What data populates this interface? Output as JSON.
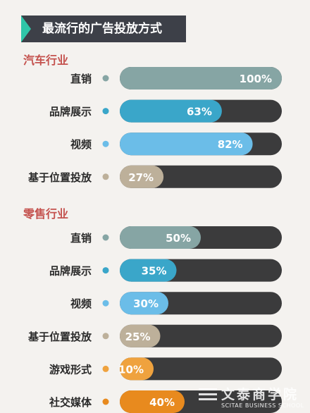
{
  "title": "最流行的广告投放方式",
  "watermark": {
    "cn": "文泰商学院",
    "en": "SCITAE BUSINESS SCHOOL"
  },
  "colors": {
    "track": "#3b3b3c",
    "gray_teal": "#86a5a4",
    "teal": "#3aa6c9",
    "light_blue": "#6bbde8",
    "tan": "#bdb09a",
    "orange_light": "#efa23e",
    "orange": "#e88a1e"
  },
  "chart_data": [
    {
      "type": "bar",
      "title": "汽车行业",
      "categories": [
        "直销",
        "品牌展示",
        "视频",
        "基于位置投放"
      ],
      "values": [
        100,
        63,
        82,
        27
      ],
      "value_labels": [
        "100%",
        "63%",
        "82%",
        "27%"
      ],
      "colors": [
        "#86a5a4",
        "#3aa6c9",
        "#6bbde8",
        "#bdb09a"
      ],
      "unit": "%",
      "xlim": [
        0,
        100
      ]
    },
    {
      "type": "bar",
      "title": "零售行业",
      "categories": [
        "直销",
        "品牌展示",
        "视频",
        "基于位置投放",
        "游戏形式",
        "社交媒体"
      ],
      "values": [
        50,
        35,
        30,
        25,
        10,
        40
      ],
      "value_labels": [
        "50%",
        "35%",
        "30%",
        "25%",
        "10%",
        "40%"
      ],
      "colors": [
        "#86a5a4",
        "#3aa6c9",
        "#6bbde8",
        "#bdb09a",
        "#efa23e",
        "#e88a1e"
      ],
      "unit": "%",
      "xlim": [
        0,
        100
      ]
    }
  ]
}
